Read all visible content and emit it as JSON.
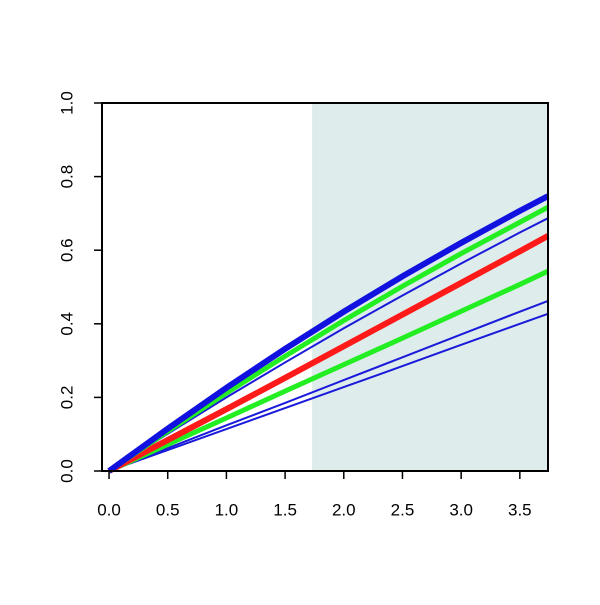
{
  "chart_data": {
    "type": "line",
    "x": [
      0,
      0.5,
      1,
      1.5,
      2,
      2.5,
      3,
      3.5,
      3.74
    ],
    "xlim": [
      -0.06,
      3.74
    ],
    "ylim": [
      0,
      1
    ],
    "xticks": [
      {
        "value": 0,
        "label": "0.0"
      },
      0.5,
      {
        "value": 1,
        "label": "1.0"
      },
      1.5,
      {
        "value": 2,
        "label": "2.0"
      },
      2.5,
      {
        "value": 3,
        "label": "3.0"
      },
      3.5
    ],
    "yticks": [
      {
        "value": 0,
        "label": "0.0"
      },
      0.2,
      0.4,
      0.6,
      0.8,
      {
        "value": 1,
        "label": "1.0"
      }
    ],
    "shade_x": [
      1.73,
      3.74
    ],
    "shade_color": "#deeceb",
    "series": [
      {
        "color": "#1a1adb",
        "width": 2,
        "values": [
          0,
          0.057,
          0.114,
          0.171,
          0.228,
          0.285,
          0.343,
          0.4,
          0.427
        ]
      },
      {
        "color": "#1a1adb",
        "width": 2,
        "values": [
          0,
          0.062,
          0.124,
          0.185,
          0.247,
          0.309,
          0.371,
          0.433,
          0.462
        ]
      },
      {
        "color": "#1a1adb",
        "width": 2,
        "values": [
          0,
          0.101,
          0.2,
          0.295,
          0.388,
          0.477,
          0.564,
          0.648,
          0.687
        ]
      },
      {
        "color": "#22ee22",
        "width": 5,
        "values": [
          0,
          0.072,
          0.144,
          0.217,
          0.289,
          0.361,
          0.434,
          0.507,
          0.543
        ]
      },
      {
        "color": "#ff1a1a",
        "width": 6,
        "values": [
          0,
          0.084,
          0.168,
          0.253,
          0.339,
          0.425,
          0.511,
          0.597,
          0.639
        ]
      },
      {
        "color": "#22ee22",
        "width": 5,
        "values": [
          0,
          0.108,
          0.212,
          0.312,
          0.409,
          0.502,
          0.591,
          0.676,
          0.717
        ]
      },
      {
        "color": "#1212e0",
        "width": 6,
        "values": [
          0,
          0.115,
          0.226,
          0.332,
          0.433,
          0.529,
          0.62,
          0.707,
          0.747
        ]
      }
    ]
  }
}
